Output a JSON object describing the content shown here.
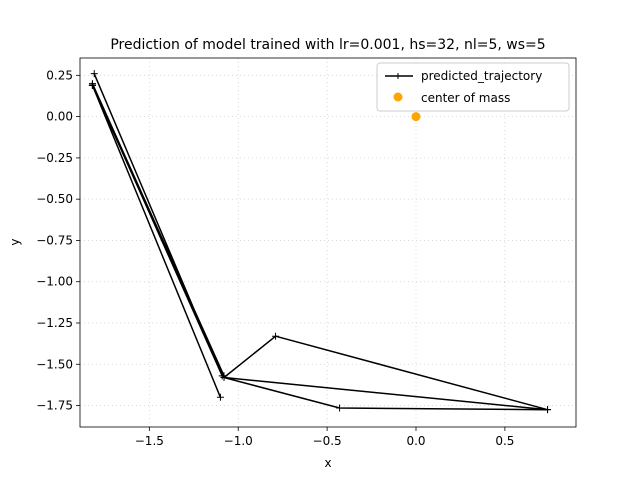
{
  "chart_data": {
    "type": "line",
    "title": "Prediction of model trained with lr=0.001, hs=32, nl=5, ws=5",
    "xlabel": "x",
    "ylabel": "y",
    "xlim": [
      -1.89,
      0.9
    ],
    "ylim": [
      -1.88,
      0.355
    ],
    "xticks": [
      -1.5,
      -1.0,
      -0.5,
      0.0,
      0.5
    ],
    "xtick_labels": [
      "−1.5",
      "−1.0",
      "−0.5",
      "0.0",
      "0.5"
    ],
    "yticks": [
      0.25,
      0.0,
      -0.25,
      -0.5,
      -0.75,
      -1.0,
      -1.25,
      -1.5,
      -1.75
    ],
    "ytick_labels": [
      "0.25",
      "0.00",
      "−0.25",
      "−0.50",
      "−0.75",
      "−1.00",
      "−1.25",
      "−1.50",
      "−1.75"
    ],
    "grid": true,
    "legend_position": "top-right",
    "series": [
      {
        "name": "predicted_trajectory",
        "kind": "line",
        "color": "#000000",
        "marker": "+",
        "x": [
          -1.81,
          -1.09,
          -1.82,
          -1.08,
          -1.82,
          -1.08,
          -1.82,
          -1.08,
          -1.82,
          -1.1,
          -1.82,
          -1.08,
          -0.79,
          0.74,
          -1.08,
          -0.43,
          0.74
        ],
        "y": [
          0.26,
          -1.57,
          0.19,
          -1.58,
          0.2,
          -1.57,
          0.19,
          -1.58,
          0.19,
          -1.7,
          0.19,
          -1.58,
          -1.33,
          -1.775,
          -1.58,
          -1.765,
          -1.775
        ]
      },
      {
        "name": "center of mass",
        "kind": "scatter",
        "color": "#ffa500",
        "marker": "o",
        "x": [
          0.0
        ],
        "y": [
          0.0
        ]
      }
    ]
  }
}
